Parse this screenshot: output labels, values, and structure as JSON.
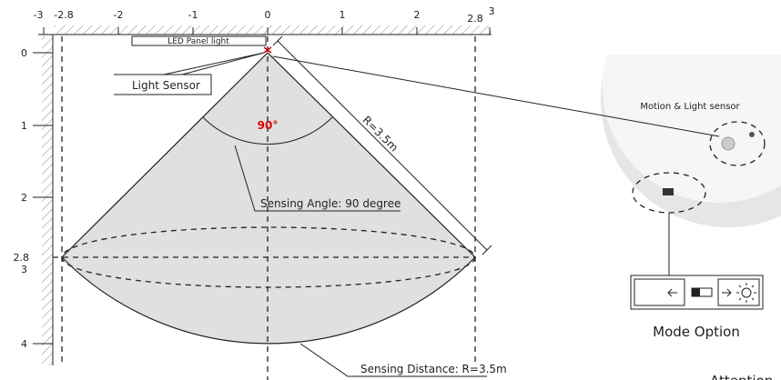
{
  "x_axis": {
    "labels": [
      "-3",
      "-2.8",
      "-2",
      "-1",
      "0",
      "1",
      "2",
      "2.8",
      "3"
    ]
  },
  "y_axis": {
    "labels": [
      "0",
      "1",
      "2",
      "2.8",
      "3",
      "4"
    ]
  },
  "labels": {
    "led_panel": "LED Panel light",
    "light_sensor": "Light Sensor",
    "angle": "90°",
    "radius": "R=3.5m",
    "sensing_angle": "Sensing Angle: 90 degree",
    "sensing_distance": "Sensing Distance: R=3.5m",
    "motion_sensor": "Motion & Light sensor",
    "mode_option": "Mode Option",
    "attention": "Attention"
  }
}
